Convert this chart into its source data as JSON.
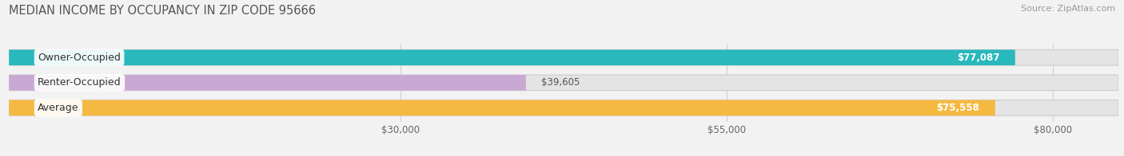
{
  "title": "MEDIAN INCOME BY OCCUPANCY IN ZIP CODE 95666",
  "source": "Source: ZipAtlas.com",
  "categories": [
    "Owner-Occupied",
    "Renter-Occupied",
    "Average"
  ],
  "values": [
    77087,
    39605,
    75558
  ],
  "bar_colors": [
    "#29b8bc",
    "#c9a8d4",
    "#f5b942"
  ],
  "value_labels": [
    "$77,087",
    "$39,605",
    "$75,558"
  ],
  "x_ticks": [
    30000,
    55000,
    80000
  ],
  "x_tick_labels": [
    "$30,000",
    "$55,000",
    "$80,000"
  ],
  "xlim_min": 0,
  "xlim_max": 85000,
  "bar_height": 0.62,
  "background_color": "#f2f2f2",
  "bar_bg_color": "#e4e4e4",
  "title_fontsize": 10.5,
  "source_fontsize": 8,
  "label_fontsize": 9,
  "value_fontsize": 8.5,
  "tick_fontsize": 8.5,
  "grid_color": "#d0d0d0"
}
